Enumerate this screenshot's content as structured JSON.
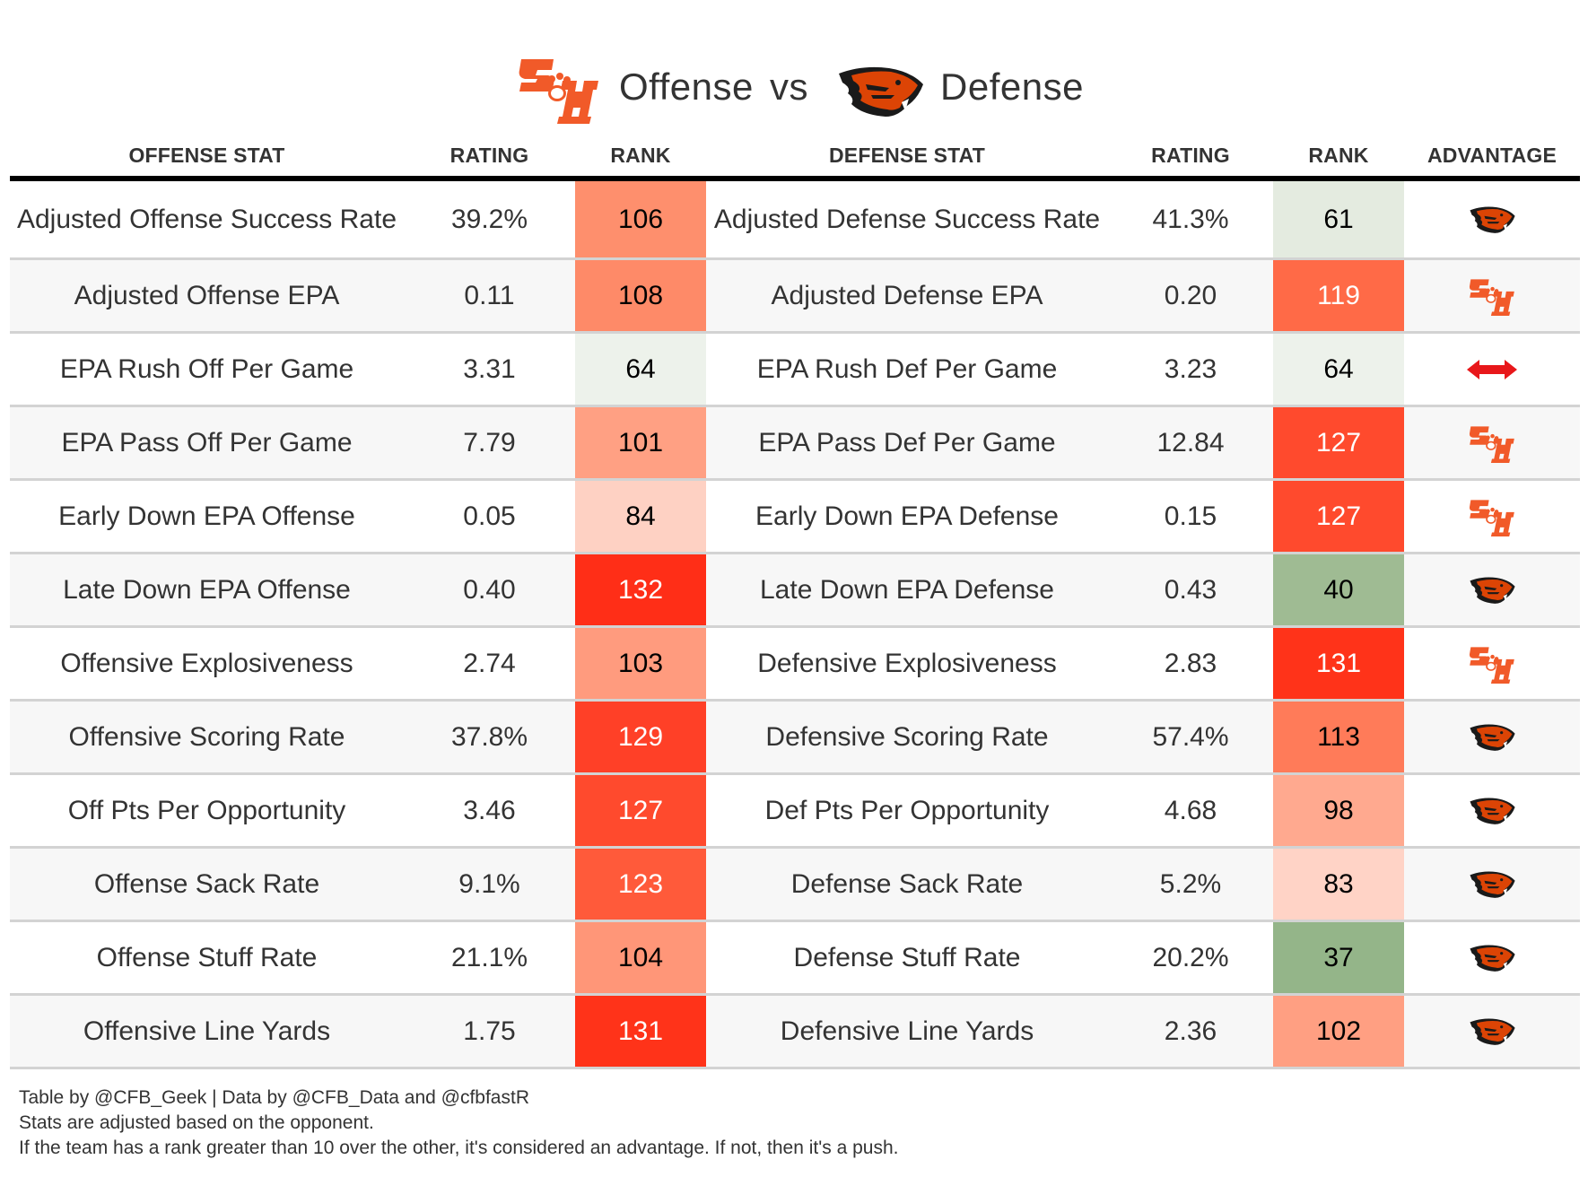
{
  "title": {
    "offense_team_logo": "sam-houston-logo",
    "offense_label": "Offense",
    "vs_label": "vs",
    "defense_team_logo": "oregon-state-beaver-logo",
    "defense_label": "Defense"
  },
  "columns": {
    "offense_stat": "OFFENSE STAT",
    "offense_rating": "RATING",
    "offense_rank": "RANK",
    "defense_stat": "DEFENSE STAT",
    "defense_rating": "RATING",
    "defense_rank": "RANK",
    "advantage": "ADVANTAGE"
  },
  "colors": {
    "sam_houston_orange": "#f15a29",
    "oregon_state_orange": "#dc4405",
    "push_arrow_red": "#e8171a"
  },
  "rows": [
    {
      "off_stat": "Adjusted Offense Success Rate",
      "off_rating": "39.2%",
      "off_rank": "106",
      "off_rank_color": "#fe8f6d",
      "def_stat": "Adjusted Defense Success Rate",
      "def_rating": "41.3%",
      "def_rank": "61",
      "def_rank_color": "#e4ebe0",
      "advantage": "defense"
    },
    {
      "off_stat": "Adjusted Offense EPA",
      "off_rating": "0.11",
      "off_rank": "108",
      "off_rank_color": "#fe8a68",
      "def_stat": "Adjusted Defense EPA",
      "def_rating": "0.20",
      "def_rank": "119",
      "def_rank_color": "#ff6a47",
      "advantage": "offense"
    },
    {
      "off_stat": "EPA Rush Off Per Game",
      "off_rating": "3.31",
      "off_rank": "64",
      "off_rank_color": "#edf2eb",
      "def_stat": "EPA Rush Def Per Game",
      "def_rating": "3.23",
      "def_rank": "64",
      "def_rank_color": "#edf2eb",
      "advantage": "push"
    },
    {
      "off_stat": "EPA Pass Off Per Game",
      "off_rating": "7.79",
      "off_rank": "101",
      "off_rank_color": "#ffa083",
      "def_stat": "EPA Pass Def Per Game",
      "def_rating": "12.84",
      "def_rank": "127",
      "def_rank_color": "#ff4a2d",
      "advantage": "offense"
    },
    {
      "off_stat": "Early Down EPA Offense",
      "off_rating": "0.05",
      "off_rank": "84",
      "off_rank_color": "#fed1c3",
      "def_stat": "Early Down EPA Defense",
      "def_rating": "0.15",
      "def_rank": "127",
      "def_rank_color": "#ff4a2d",
      "advantage": "offense"
    },
    {
      "off_stat": "Late Down EPA Offense",
      "off_rating": "0.40",
      "off_rank": "132",
      "off_rank_color": "#ff2e17",
      "def_stat": "Late Down EPA Defense",
      "def_rating": "0.43",
      "def_rank": "40",
      "def_rank_color": "#9fbb93",
      "advantage": "defense"
    },
    {
      "off_stat": "Offensive Explosiveness",
      "off_rating": "2.74",
      "off_rank": "103",
      "off_rank_color": "#ff9b7e",
      "def_stat": "Defensive Explosiveness",
      "def_rating": "2.83",
      "def_rank": "131",
      "def_rank_color": "#ff3319",
      "advantage": "offense"
    },
    {
      "off_stat": "Offensive Scoring Rate",
      "off_rating": "37.8%",
      "off_rank": "129",
      "off_rank_color": "#ff4027",
      "def_stat": "Defensive Scoring Rate",
      "def_rating": "57.4%",
      "def_rank": "113",
      "def_rank_color": "#ff7b59",
      "advantage": "defense"
    },
    {
      "off_stat": "Off Pts Per Opportunity",
      "off_rating": "3.46",
      "off_rank": "127",
      "off_rank_color": "#ff4a2d",
      "def_stat": "Def Pts Per Opportunity",
      "def_rating": "4.68",
      "def_rank": "98",
      "def_rank_color": "#ffa98f",
      "advantage": "defense"
    },
    {
      "off_stat": "Offense Sack Rate",
      "off_rating": "9.1%",
      "off_rank": "123",
      "off_rank_color": "#ff5a3a",
      "def_stat": "Defense Sack Rate",
      "def_rating": "5.2%",
      "def_rank": "83",
      "def_rank_color": "#ffd3c6",
      "advantage": "defense"
    },
    {
      "off_stat": "Offense Stuff Rate",
      "off_rating": "21.1%",
      "off_rank": "104",
      "off_rank_color": "#ff9678",
      "def_stat": "Defense Stuff Rate",
      "def_rating": "20.2%",
      "def_rank": "37",
      "def_rank_color": "#94b589",
      "advantage": "defense"
    },
    {
      "off_stat": "Offensive Line Yards",
      "off_rating": "1.75",
      "off_rank": "131",
      "off_rank_color": "#ff3319",
      "def_stat": "Defensive Line Yards",
      "def_rating": "2.36",
      "def_rank": "102",
      "def_rank_color": "#ff9f82",
      "advantage": "defense"
    }
  ],
  "footnotes": [
    "Table by @CFB_Geek | Data by @CFB_Data and @cfbfastR",
    "Stats are adjusted based on the opponent.",
    "If the team has a rank greater than 10 over the other, it's considered an advantage. If not, then it's a push."
  ]
}
